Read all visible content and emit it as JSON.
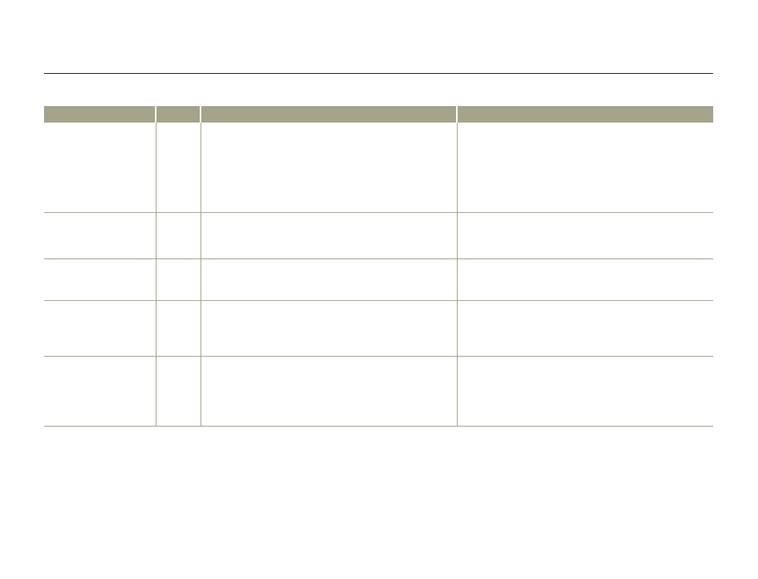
{
  "table": {
    "header_color": "#a6a38b",
    "headers": [
      "",
      "",
      "",
      ""
    ],
    "rows": [
      [
        "",
        "",
        "",
        ""
      ],
      [
        "",
        "",
        "",
        ""
      ],
      [
        "",
        "",
        "",
        ""
      ],
      [
        "",
        "",
        "",
        ""
      ],
      [
        "",
        "",
        "",
        ""
      ]
    ]
  }
}
